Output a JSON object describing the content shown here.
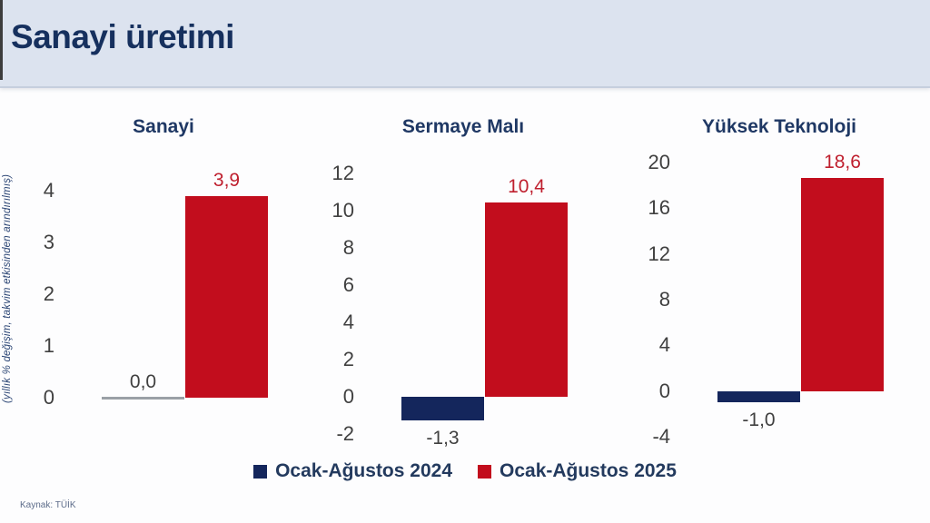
{
  "header": {
    "title": "Sanayi üretimi"
  },
  "y_axis_note": "(yıllık % değişim, takvim etkisinden arındırılmış)",
  "source": "Kaynak: TÜİK",
  "legend": [
    {
      "label": "Ocak-Ağustos 2024",
      "color": "#14265c"
    },
    {
      "label": "Ocak-Ağustos 2025",
      "color": "#c20d1d"
    }
  ],
  "colors": {
    "header_bg": "#dce3ef",
    "title_text": "#16305e",
    "chart_title_text": "#1f3864",
    "tick_text": "#404040",
    "red_label": "#bf1f2e",
    "zero_line": "#9aa0a6"
  },
  "chart_data": [
    {
      "type": "bar",
      "title": "Sanayi",
      "categories": [
        "Ocak-Ağustos 2024",
        "Ocak-Ağustos 2025"
      ],
      "values": [
        0.0,
        3.9
      ],
      "value_labels": [
        "0,0",
        "3,9"
      ],
      "yticks": [
        4,
        3,
        2,
        1,
        0
      ],
      "ylim": [
        -1.0,
        4.7
      ],
      "grid": false,
      "ylabel": "(yıllık % değişim, takvim etkisinden arındırılmış)"
    },
    {
      "type": "bar",
      "title": "Sermaye Malı",
      "categories": [
        "Ocak-Ağustos 2024",
        "Ocak-Ağustos 2025"
      ],
      "values": [
        -1.3,
        10.4
      ],
      "value_labels": [
        "-1,3",
        "10,4"
      ],
      "yticks": [
        12,
        10,
        8,
        6,
        4,
        2,
        0,
        -2
      ],
      "ylim": [
        -2.85,
        13.0
      ],
      "grid": false
    },
    {
      "type": "bar",
      "title": "Yüksek Teknoloji",
      "categories": [
        "Ocak-Ağustos 2024",
        "Ocak-Ağustos 2025"
      ],
      "values": [
        -1.0,
        18.6
      ],
      "value_labels": [
        "-1,0",
        "18,6"
      ],
      "yticks": [
        20,
        16,
        12,
        8,
        4,
        0,
        -4
      ],
      "ylim": [
        -5.1,
        20.7
      ],
      "grid": false
    }
  ]
}
